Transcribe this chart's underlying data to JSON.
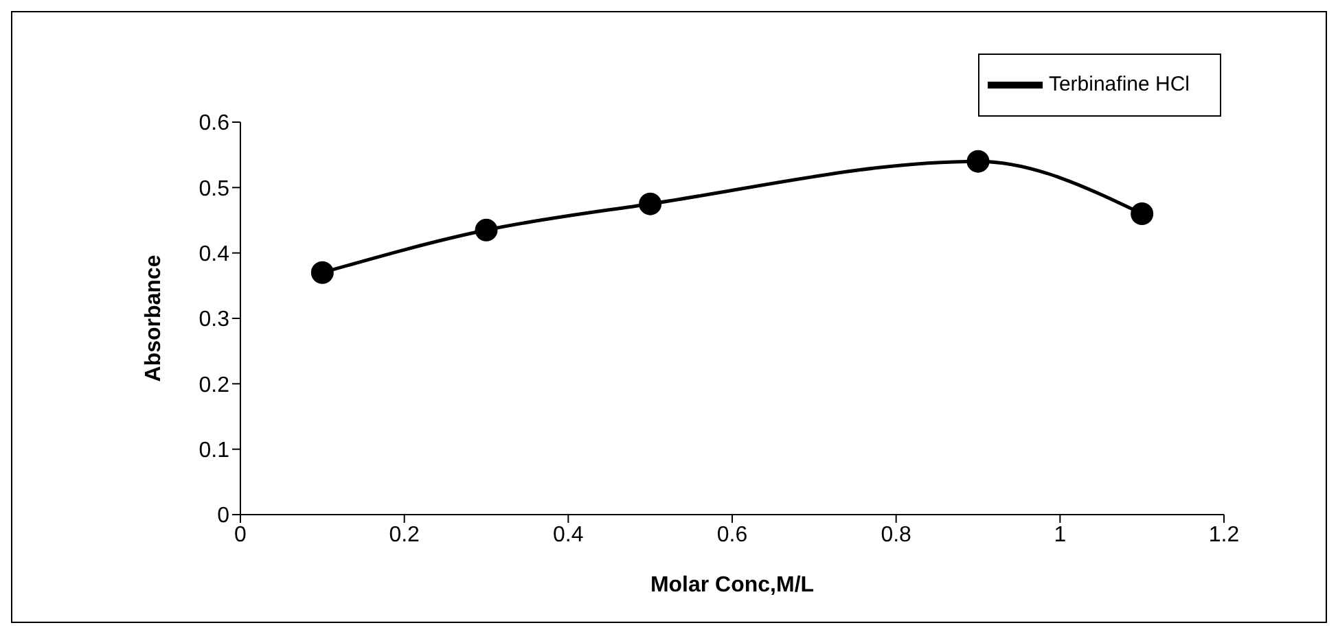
{
  "chart_data": {
    "type": "line",
    "xlabel": "Molar Conc,M/L",
    "ylabel": "Absorbance",
    "x": [
      0.1,
      0.3,
      0.5,
      0.9,
      1.1
    ],
    "series": [
      {
        "name": "Terbinafine HCl",
        "color": "#000000",
        "values": [
          0.37,
          0.435,
          0.475,
          0.54,
          0.46
        ]
      }
    ],
    "xlim": [
      0,
      1.2
    ],
    "xticks": [
      0,
      0.2,
      0.4,
      0.6,
      0.8,
      1,
      1.2
    ],
    "ylim": [
      0,
      0.6
    ],
    "yticks": [
      0,
      0.1,
      0.2,
      0.3,
      0.4,
      0.5,
      0.6
    ],
    "grid": false,
    "legend": "top right",
    "marker": "circle",
    "line_style": "solid"
  }
}
